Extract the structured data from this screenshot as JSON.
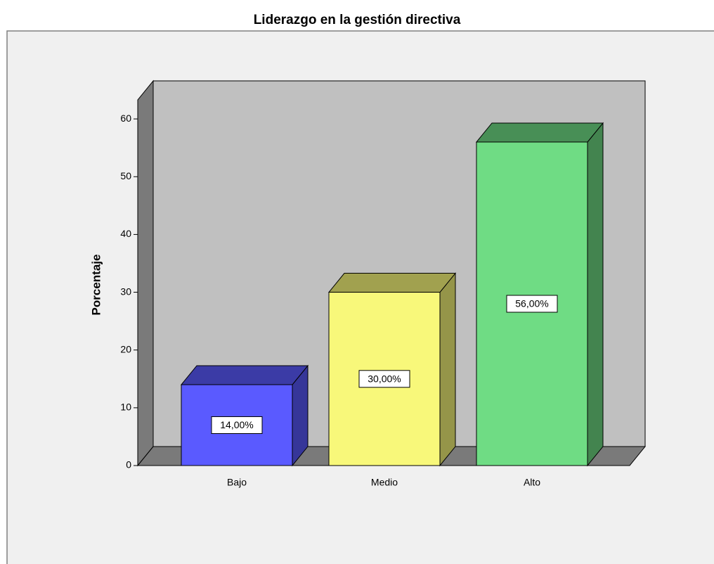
{
  "chart_data": {
    "type": "bar3d",
    "title": "Liderazgo en la gestión directiva",
    "y_label": "Porcentaje",
    "categories": [
      "Bajo",
      "Medio",
      "Alto"
    ],
    "values": [
      14,
      30,
      56
    ],
    "value_labels": [
      "14,00%",
      "30,00%",
      "56,00%"
    ],
    "colors": [
      "#5a5aff",
      "#f8f87a",
      "#6fdc84"
    ],
    "ylim": [
      0,
      63.3
    ],
    "yticks": [
      0,
      10,
      20,
      30,
      40,
      50,
      60
    ]
  }
}
